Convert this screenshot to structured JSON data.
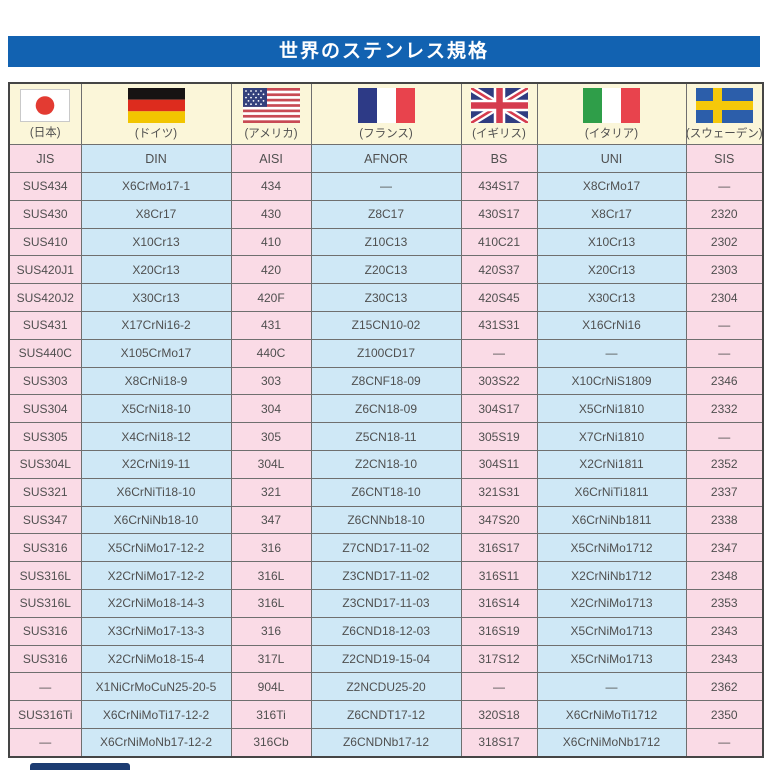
{
  "title": "世界のステンレス規格",
  "colors": {
    "title_bar": "#1262b1",
    "title_text": "#ffffff",
    "header_bg": "#fbf6d9",
    "pink": "#fadbe6",
    "blue": "#cfe8f6",
    "grid_line": "#6f6f6f",
    "outer_border": "#454545",
    "text": "#4f4f4f"
  },
  "header": {
    "countries": [
      {
        "label": "(日本)",
        "flag": "japan-flag"
      },
      {
        "label": "(ドイツ)",
        "flag": "germany-flag"
      },
      {
        "label": "(アメリカ)",
        "flag": "usa-flag"
      },
      {
        "label": "(フランス)",
        "flag": "france-flag"
      },
      {
        "label": "(イギリス)",
        "flag": "uk-flag"
      },
      {
        "label": "(イタリア)",
        "flag": "italy-flag"
      },
      {
        "label": "(スウェーデン)",
        "flag": "sweden-flag"
      }
    ],
    "standards": [
      "JIS",
      "DIN",
      "AISI",
      "AFNOR",
      "BS",
      "UNI",
      "SIS"
    ]
  },
  "rows": [
    [
      "SUS434",
      "X6CrMo17-1",
      "434",
      "—",
      "434S17",
      "X8CrMo17",
      "—"
    ],
    [
      "SUS430",
      "X8Cr17",
      "430",
      "Z8C17",
      "430S17",
      "X8Cr17",
      "2320"
    ],
    [
      "SUS410",
      "X10Cr13",
      "410",
      "Z10C13",
      "410C21",
      "X10Cr13",
      "2302"
    ],
    [
      "SUS420J1",
      "X20Cr13",
      "420",
      "Z20C13",
      "420S37",
      "X20Cr13",
      "2303"
    ],
    [
      "SUS420J2",
      "X30Cr13",
      "420F",
      "Z30C13",
      "420S45",
      "X30Cr13",
      "2304"
    ],
    [
      "SUS431",
      "X17CrNi16-2",
      "431",
      "Z15CN10-02",
      "431S31",
      "X16CrNi16",
      "—"
    ],
    [
      "SUS440C",
      "X105CrMo17",
      "440C",
      "Z100CD17",
      "—",
      "—",
      "—"
    ],
    [
      "SUS303",
      "X8CrNi18-9",
      "303",
      "Z8CNF18-09",
      "303S22",
      "X10CrNiS1809",
      "2346"
    ],
    [
      "SUS304",
      "X5CrNi18-10",
      "304",
      "Z6CN18-09",
      "304S17",
      "X5CrNi1810",
      "2332"
    ],
    [
      "SUS305",
      "X4CrNi18-12",
      "305",
      "Z5CN18-11",
      "305S19",
      "X7CrNi1810",
      "—"
    ],
    [
      "SUS304L",
      "X2CrNi19-11",
      "304L",
      "Z2CN18-10",
      "304S11",
      "X2CrNi1811",
      "2352"
    ],
    [
      "SUS321",
      "X6CrNiTi18-10",
      "321",
      "Z6CNT18-10",
      "321S31",
      "X6CrNiTi1811",
      "2337"
    ],
    [
      "SUS347",
      "X6CrNiNb18-10",
      "347",
      "Z6CNNb18-10",
      "347S20",
      "X6CrNiNb1811",
      "2338"
    ],
    [
      "SUS316",
      "X5CrNiMo17-12-2",
      "316",
      "Z7CND17-11-02",
      "316S17",
      "X5CrNiMo1712",
      "2347"
    ],
    [
      "SUS316L",
      "X2CrNiMo17-12-2",
      "316L",
      "Z3CND17-11-02",
      "316S11",
      "X2CrNiNb1712",
      "2348"
    ],
    [
      "SUS316L",
      "X2CrNiMo18-14-3",
      "316L",
      "Z3CND17-11-03",
      "316S14",
      "X2CrNiMo1713",
      "2353"
    ],
    [
      "SUS316",
      "X3CrNiMo17-13-3",
      "316",
      "Z6CND18-12-03",
      "316S19",
      "X5CrNiMo1713",
      "2343"
    ],
    [
      "SUS316",
      "X2CrNiMo18-15-4",
      "317L",
      "Z2CND19-15-04",
      "317S12",
      "X5CrNiMo1713",
      "2343"
    ],
    [
      "—",
      "X1NiCrMoCuN25-20-5",
      "904L",
      "Z2NCDU25-20",
      "—",
      "—",
      "2362"
    ],
    [
      "SUS316Ti",
      "X6CrNiMoTi17-12-2",
      "316Ti",
      "Z6CNDT17-12",
      "320S18",
      "X6CrNiMoTi1712",
      "2350"
    ],
    [
      "—",
      "X6CrNiMoNb17-12-2",
      "316Cb",
      "Z6CNDNb17-12",
      "318S17",
      "X6CrNiMoNb1712",
      "—"
    ]
  ]
}
